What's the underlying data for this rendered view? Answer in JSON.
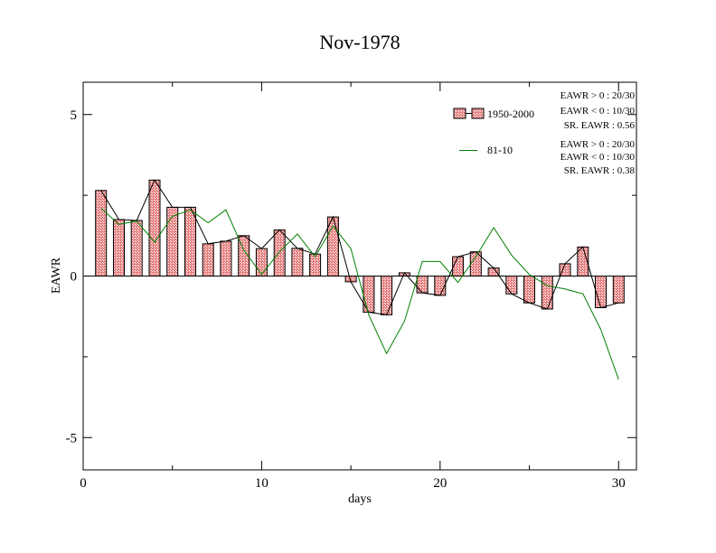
{
  "chart_data": {
    "type": "bar",
    "title": "Nov-1978",
    "xlabel": "days",
    "ylabel": "EAWR",
    "xlim": [
      0,
      31
    ],
    "ylim": [
      -6,
      6
    ],
    "x_ticks": [
      0,
      10,
      20,
      30
    ],
    "y_ticks": [
      -5,
      0,
      5
    ],
    "x_tick_labels": [
      "0",
      "10",
      "20",
      "30"
    ],
    "y_tick_labels": [
      "-5",
      "0",
      "5"
    ],
    "grid": false,
    "legend_position": "top-right",
    "days": [
      1,
      2,
      3,
      4,
      5,
      6,
      7,
      8,
      9,
      10,
      11,
      12,
      13,
      14,
      15,
      16,
      17,
      18,
      19,
      20,
      21,
      22,
      23,
      24,
      25,
      26,
      27,
      28,
      29,
      30
    ],
    "series": [
      {
        "name": "1950-2000",
        "kind": "bar",
        "fill": "#e8a0a0",
        "stroke": "#000000",
        "values": [
          2.65,
          1.75,
          1.72,
          2.97,
          2.13,
          2.13,
          1.0,
          1.08,
          1.25,
          0.85,
          1.43,
          0.86,
          0.68,
          1.83,
          -0.18,
          -1.12,
          -1.2,
          0.1,
          -0.52,
          -0.6,
          0.6,
          0.75,
          0.25,
          -0.55,
          -0.83,
          -1.02,
          0.38,
          0.9,
          -0.98,
          -0.83
        ]
      },
      {
        "name": "81-10",
        "kind": "line",
        "color": "#008000",
        "values": [
          2.1,
          1.6,
          1.7,
          1.05,
          1.85,
          2.05,
          1.65,
          2.05,
          0.8,
          0.05,
          0.75,
          1.3,
          0.6,
          1.55,
          0.85,
          -1.2,
          -2.4,
          -1.4,
          0.45,
          0.45,
          -0.2,
          0.6,
          1.5,
          0.65,
          0.05,
          -0.3,
          -0.4,
          -0.55,
          -1.65,
          -3.2
        ]
      }
    ],
    "annotations": [
      {
        "id": "hist_pos",
        "text": "EAWR > 0 : 20/30"
      },
      {
        "id": "hist_neg",
        "text": "EAWR < 0 : 10/30"
      },
      {
        "id": "hist_sr",
        "text": "SR. EAWR :  0.56"
      },
      {
        "id": "rec_pos",
        "text": "EAWR > 0 : 20/30"
      },
      {
        "id": "rec_neg",
        "text": "EAWR < 0 : 10/30"
      },
      {
        "id": "rec_sr",
        "text": "SR. EAWR :  0.38"
      }
    ]
  }
}
